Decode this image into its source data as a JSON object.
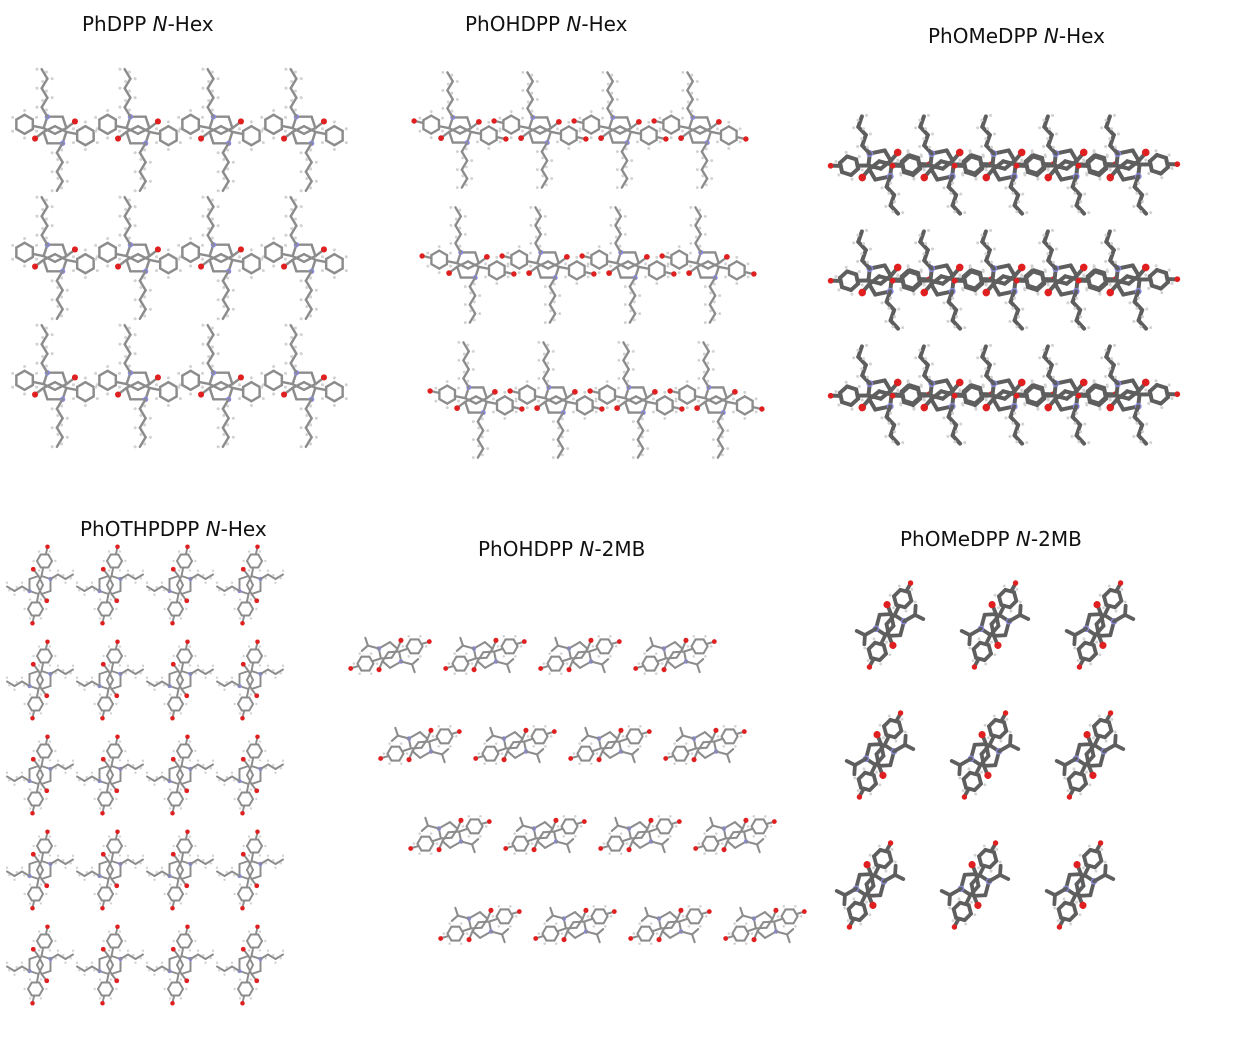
{
  "colors": {
    "carbon": "#8c8c8c",
    "carbon_dark": "#5e5e5e",
    "hydrogen": "#d2d2d2",
    "oxygen": "#e02020",
    "nitrogen": "#8888dd",
    "background": "#ffffff"
  },
  "panels": [
    {
      "id": "p1",
      "title": {
        "prefix": "PhDPP ",
        "italic": "N",
        "suffix": "-Hex"
      }
    },
    {
      "id": "p2",
      "title": {
        "prefix": "PhOHDPP ",
        "italic": "N",
        "suffix": "-Hex"
      }
    },
    {
      "id": "p3",
      "title": {
        "prefix": "PhOMeDPP ",
        "italic": "N",
        "suffix": "-Hex"
      }
    },
    {
      "id": "p4",
      "title": {
        "prefix": "PhOTHPDPP ",
        "italic": "N",
        "suffix": "-Hex"
      }
    },
    {
      "id": "p5",
      "title": {
        "prefix": "PhOHDPP ",
        "italic": "N",
        "suffix": "-2MB"
      }
    },
    {
      "id": "p6",
      "title": {
        "prefix": "PhOMeDPP ",
        "italic": "N",
        "suffix": "-2MB"
      }
    }
  ]
}
